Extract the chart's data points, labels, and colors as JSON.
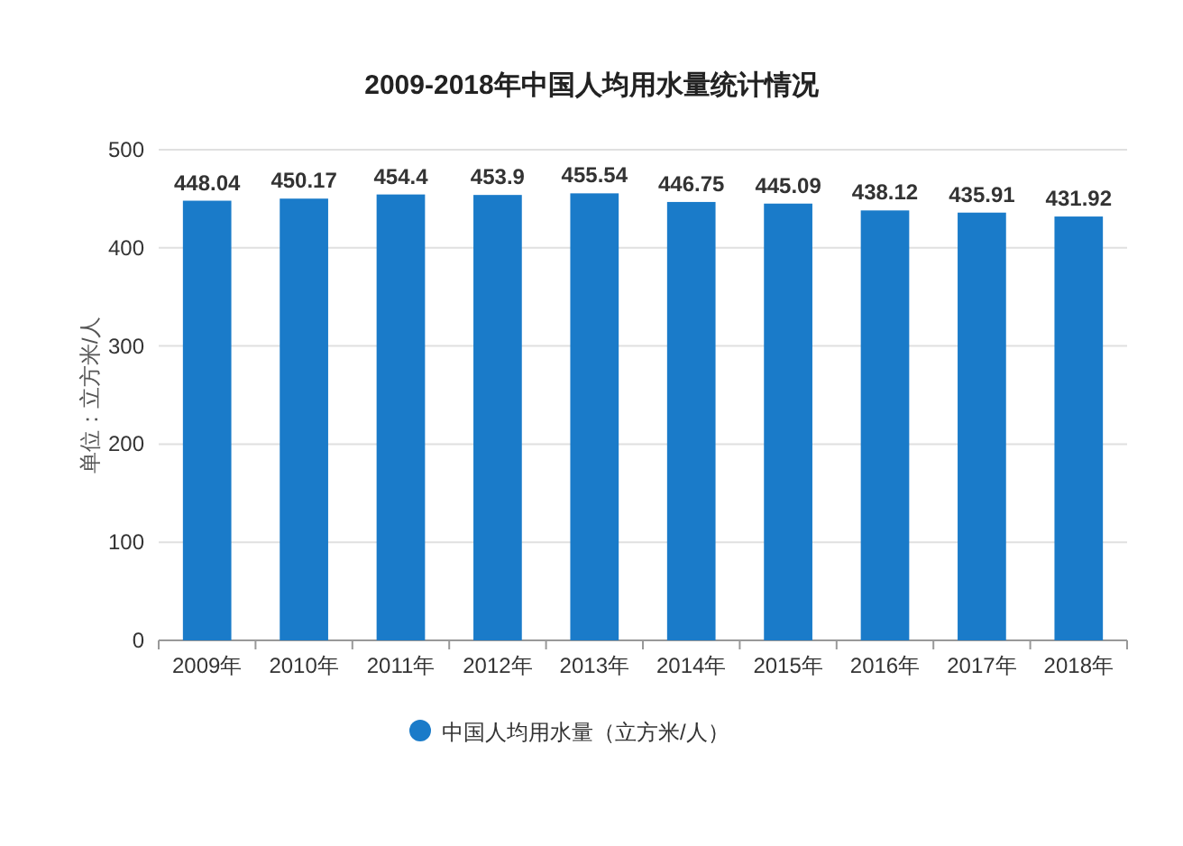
{
  "chart_data": {
    "type": "bar",
    "title": "2009-2018年中国人均用水量统计情况",
    "ylabel": "单位：立方米/人",
    "categories": [
      "2009年",
      "2010年",
      "2011年",
      "2012年",
      "2013年",
      "2014年",
      "2015年",
      "2016年",
      "2017年",
      "2018年"
    ],
    "series": [
      {
        "name": "中国人均用水量（立方米/人）",
        "color": "#1a7bc9",
        "values": [
          448.04,
          450.17,
          454.4,
          453.9,
          455.54,
          446.75,
          445.09,
          438.12,
          435.91,
          431.92
        ]
      }
    ],
    "ylim": [
      0,
      500
    ],
    "yticks": [
      0,
      100,
      200,
      300,
      400,
      500
    ],
    "grid": "y",
    "legend": "bottom",
    "data_labels": true
  }
}
